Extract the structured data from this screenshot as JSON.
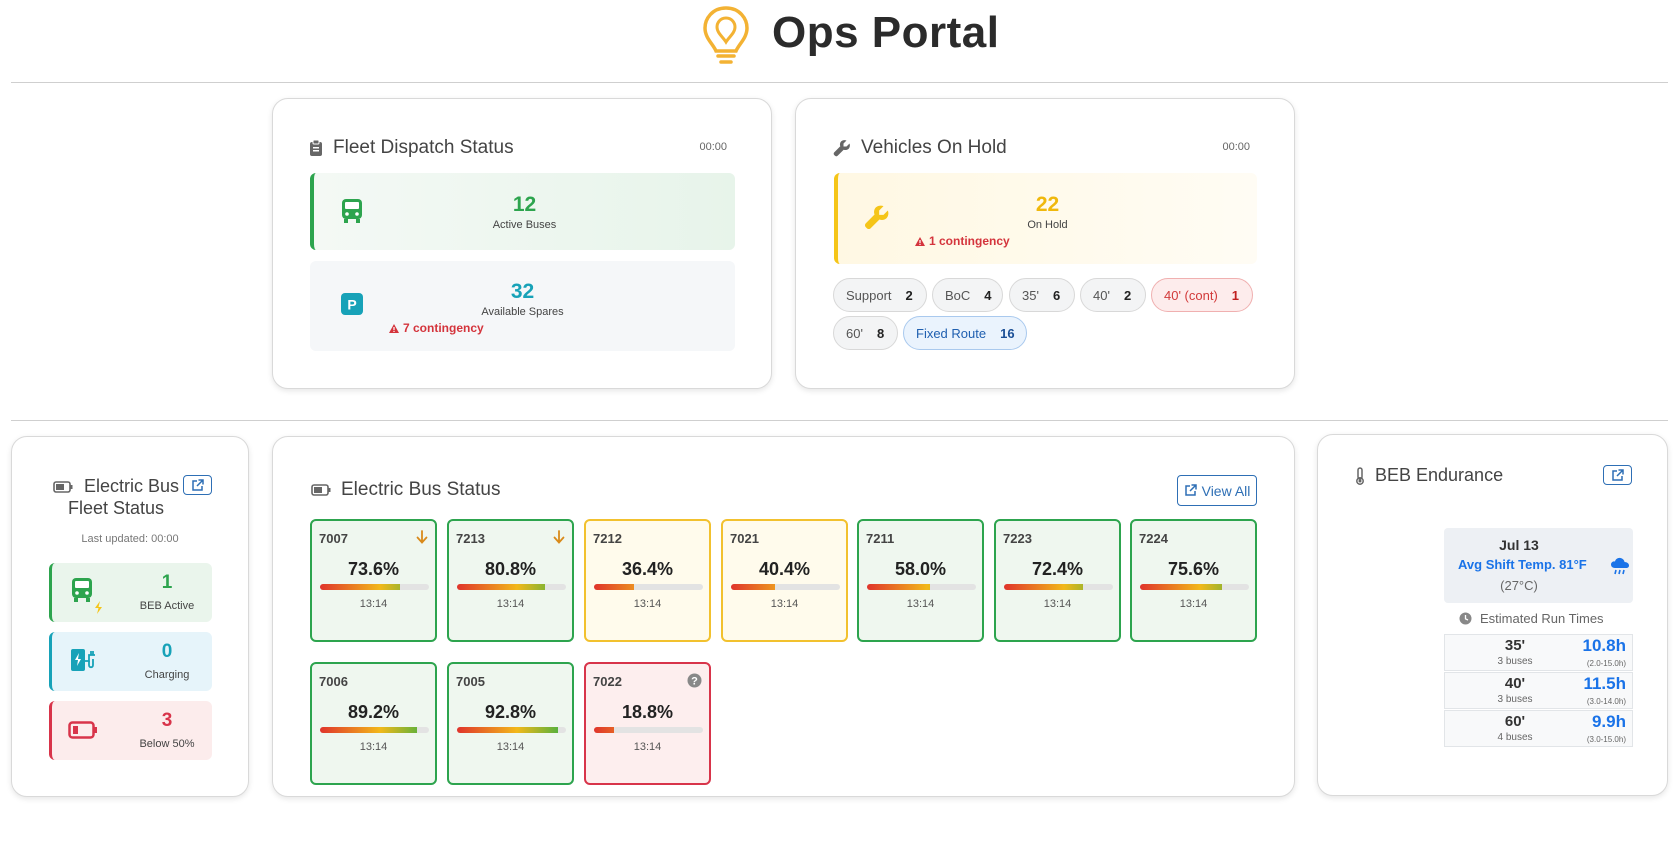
{
  "header": {
    "title": "Ops Portal"
  },
  "dispatch": {
    "title": "Fleet Dispatch Status",
    "time": "00:00",
    "active": {
      "value": "12",
      "label": "Active Buses"
    },
    "spares": {
      "value": "32",
      "label": "Available Spares",
      "contingency": "7 contingency"
    }
  },
  "hold": {
    "title": "Vehicles On Hold",
    "time": "00:00",
    "on_hold": {
      "value": "22",
      "label": "On Hold",
      "contingency": "1 contingency"
    },
    "pills": [
      {
        "label": "Support",
        "count": "2"
      },
      {
        "label": "BoC",
        "count": "4"
      },
      {
        "label": "35'",
        "count": "6"
      },
      {
        "label": "40'",
        "count": "2"
      },
      {
        "label": "40' (cont)",
        "count": "1"
      },
      {
        "label": "60'",
        "count": "8"
      },
      {
        "label": "Fixed Route",
        "count": "16"
      }
    ]
  },
  "fleet": {
    "title_line1": "Electric Bus",
    "title_line2": "Fleet Status",
    "updated": "Last updated: 00:00",
    "active": {
      "value": "1",
      "label": "BEB Active"
    },
    "charging": {
      "value": "0",
      "label": "Charging"
    },
    "below": {
      "value": "3",
      "label": "Below 50%"
    }
  },
  "ebs": {
    "title": "Electric Bus Status",
    "view_all": "View All",
    "buses": [
      {
        "id": "7007",
        "pct": "73.6%",
        "level": 0.736,
        "time": "13:14",
        "status": "ok",
        "icon": "arrow-down-icon"
      },
      {
        "id": "7213",
        "pct": "80.8%",
        "level": 0.808,
        "time": "13:14",
        "status": "ok",
        "icon": "arrow-down-icon"
      },
      {
        "id": "7212",
        "pct": "36.4%",
        "level": 0.364,
        "time": "13:14",
        "status": "warn",
        "icon": ""
      },
      {
        "id": "7021",
        "pct": "40.4%",
        "level": 0.404,
        "time": "13:14",
        "status": "warn",
        "icon": ""
      },
      {
        "id": "7211",
        "pct": "58.0%",
        "level": 0.58,
        "time": "13:14",
        "status": "ok",
        "icon": ""
      },
      {
        "id": "7223",
        "pct": "72.4%",
        "level": 0.724,
        "time": "13:14",
        "status": "ok",
        "icon": ""
      },
      {
        "id": "7224",
        "pct": "75.6%",
        "level": 0.756,
        "time": "13:14",
        "status": "ok",
        "icon": ""
      },
      {
        "id": "7006",
        "pct": "89.2%",
        "level": 0.892,
        "time": "13:14",
        "status": "ok",
        "icon": ""
      },
      {
        "id": "7005",
        "pct": "92.8%",
        "level": 0.928,
        "time": "13:14",
        "status": "ok",
        "icon": ""
      },
      {
        "id": "7022",
        "pct": "18.8%",
        "level": 0.188,
        "time": "13:14",
        "status": "bad",
        "icon": "question-icon"
      }
    ]
  },
  "endurance": {
    "title": "BEB Endurance",
    "date": "Jul 13",
    "temp": "Avg Shift Temp. 81°F",
    "temp_c": "(27°C)",
    "run_title": "Estimated Run Times",
    "rows": [
      {
        "size": "35'",
        "buses": "3 buses",
        "hours": "10.8h",
        "range": "(2.0-15.0h)"
      },
      {
        "size": "40'",
        "buses": "3 buses",
        "hours": "11.5h",
        "range": "(3.0-14.0h)"
      },
      {
        "size": "60'",
        "buses": "4 buses",
        "hours": "9.9h",
        "range": "(3.0-15.0h)"
      }
    ]
  }
}
